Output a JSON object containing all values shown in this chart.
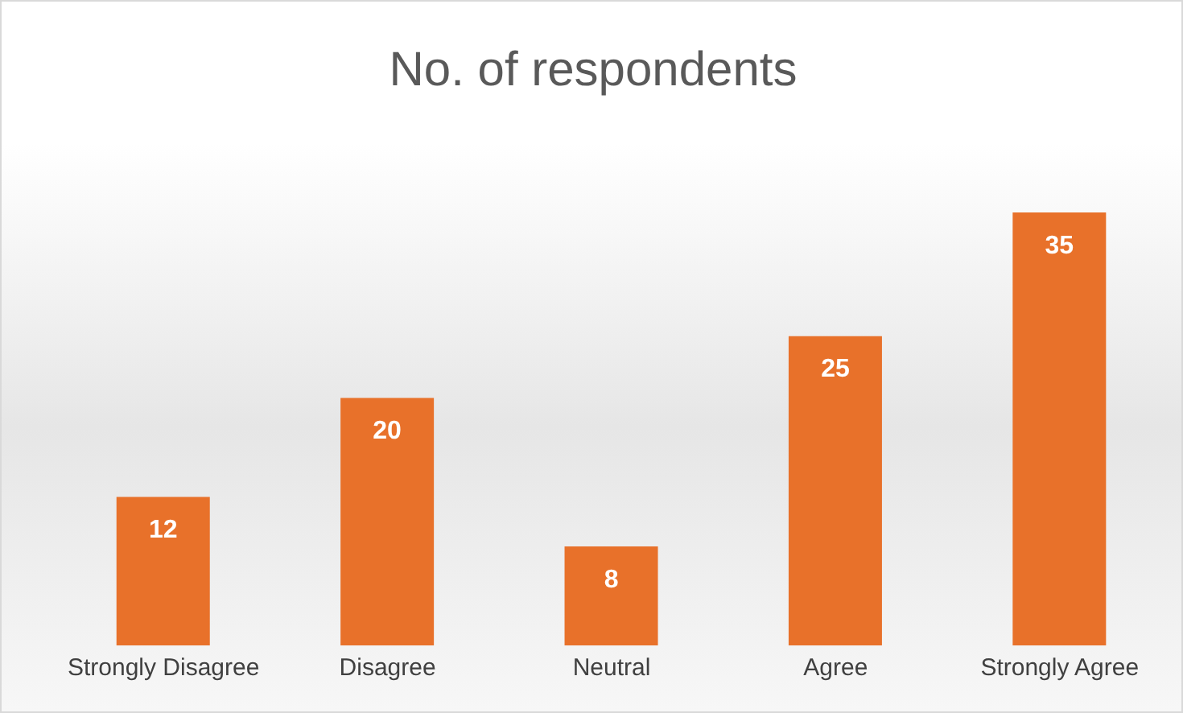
{
  "chart_data": {
    "type": "bar",
    "title": "No. of respondents",
    "categories": [
      "Strongly Disagree",
      "Disagree",
      "Neutral",
      "Agree",
      "Strongly Agree"
    ],
    "values": [
      12,
      20,
      8,
      25,
      35
    ],
    "color": "#e8712a",
    "data_labels": true,
    "grid": false
  }
}
